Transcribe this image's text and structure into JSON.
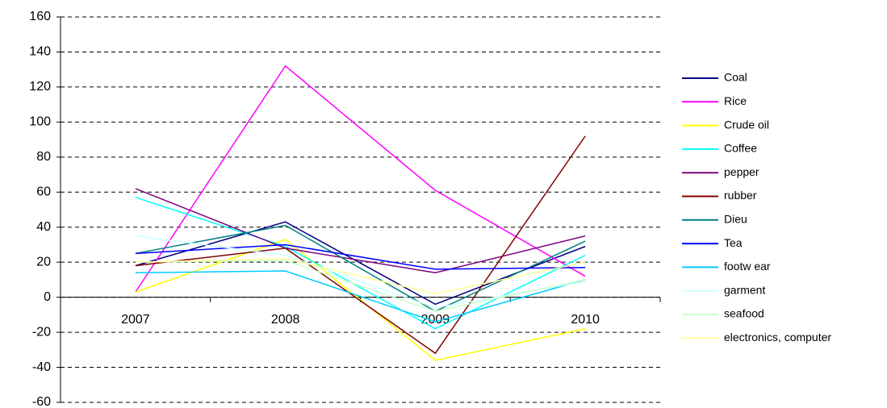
{
  "chart_data": {
    "type": "line",
    "categories": [
      "2007",
      "2008",
      "2009",
      "2010"
    ],
    "series": [
      {
        "name": "Coal",
        "color": "#000080",
        "values": [
          18,
          43,
          -4,
          29
        ]
      },
      {
        "name": "Rice",
        "color": "#FF00FF",
        "values": [
          3,
          132,
          61,
          12
        ]
      },
      {
        "name": "Crude oil",
        "color": "#FFFF00",
        "values": [
          3,
          33,
          -36,
          -18
        ]
      },
      {
        "name": "Coffee",
        "color": "#00FFFF",
        "values": [
          57,
          29,
          -18,
          24
        ]
      },
      {
        "name": "pepper",
        "color": "#800080",
        "values": [
          62,
          28,
          14,
          35
        ]
      },
      {
        "name": "rubber",
        "color": "#800000",
        "values": [
          18,
          28,
          -32,
          92
        ]
      },
      {
        "name": "Dieu",
        "color": "#008080",
        "values": [
          25,
          41,
          -8,
          32
        ]
      },
      {
        "name": "Tea",
        "color": "#0000FF",
        "values": [
          25,
          30,
          16,
          17
        ]
      },
      {
        "name": "footw ear",
        "color": "#00CCFF",
        "values": [
          14,
          15,
          -14,
          10
        ]
      },
      {
        "name": "garment",
        "color": "#CCFFFF",
        "values": [
          35,
          24,
          -6,
          9
        ]
      },
      {
        "name": "seafood",
        "color": "#CCFFCC",
        "values": [
          20,
          21,
          -8,
          10
        ]
      },
      {
        "name": "electronics, computer",
        "color": "#FFFF99",
        "values": [
          20,
          22,
          2,
          20
        ]
      }
    ],
    "ylim": [
      -60,
      160
    ],
    "yticks": [
      -60,
      -40,
      -20,
      0,
      20,
      40,
      60,
      80,
      100,
      120,
      140,
      160
    ],
    "grid": true,
    "legend": "right"
  }
}
